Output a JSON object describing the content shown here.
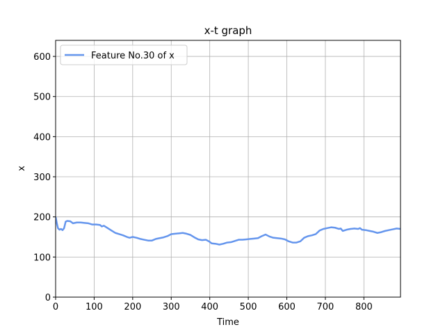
{
  "chart_data": {
    "type": "line",
    "title": "x-t graph",
    "xlabel": "Time",
    "ylabel": "x",
    "xlim": [
      0,
      895
    ],
    "ylim": [
      0,
      640
    ],
    "x_ticks": [
      0,
      100,
      200,
      300,
      400,
      500,
      600,
      700,
      800
    ],
    "y_ticks": [
      0,
      100,
      200,
      300,
      400,
      500,
      600
    ],
    "grid": true,
    "legend_position": "top-left",
    "series": [
      {
        "name": "Feature No.30 of x",
        "color": "#6495ED",
        "points": [
          [
            0,
            200
          ],
          [
            3,
            185
          ],
          [
            6,
            172
          ],
          [
            10,
            168
          ],
          [
            14,
            170
          ],
          [
            18,
            167
          ],
          [
            22,
            172
          ],
          [
            26,
            188
          ],
          [
            30,
            190
          ],
          [
            38,
            189
          ],
          [
            45,
            184
          ],
          [
            55,
            186
          ],
          [
            65,
            186
          ],
          [
            75,
            185
          ],
          [
            85,
            184
          ],
          [
            95,
            181
          ],
          [
            105,
            181
          ],
          [
            115,
            180
          ],
          [
            120,
            176
          ],
          [
            125,
            178
          ],
          [
            135,
            172
          ],
          [
            145,
            166
          ],
          [
            155,
            160
          ],
          [
            165,
            157
          ],
          [
            175,
            154
          ],
          [
            185,
            150
          ],
          [
            192,
            148
          ],
          [
            200,
            150
          ],
          [
            210,
            148
          ],
          [
            220,
            145
          ],
          [
            230,
            143
          ],
          [
            240,
            141
          ],
          [
            250,
            141
          ],
          [
            260,
            145
          ],
          [
            270,
            147
          ],
          [
            280,
            149
          ],
          [
            290,
            152
          ],
          [
            300,
            157
          ],
          [
            310,
            158
          ],
          [
            320,
            159
          ],
          [
            330,
            160
          ],
          [
            340,
            158
          ],
          [
            350,
            155
          ],
          [
            360,
            149
          ],
          [
            370,
            144
          ],
          [
            380,
            142
          ],
          [
            390,
            143
          ],
          [
            398,
            139
          ],
          [
            405,
            134
          ],
          [
            415,
            133
          ],
          [
            425,
            131
          ],
          [
            435,
            133
          ],
          [
            445,
            136
          ],
          [
            455,
            137
          ],
          [
            465,
            140
          ],
          [
            475,
            143
          ],
          [
            485,
            143
          ],
          [
            495,
            144
          ],
          [
            505,
            145
          ],
          [
            515,
            146
          ],
          [
            525,
            147
          ],
          [
            535,
            152
          ],
          [
            545,
            156
          ],
          [
            555,
            151
          ],
          [
            565,
            148
          ],
          [
            575,
            147
          ],
          [
            585,
            146
          ],
          [
            595,
            144
          ],
          [
            605,
            139
          ],
          [
            615,
            136
          ],
          [
            625,
            136
          ],
          [
            635,
            139
          ],
          [
            645,
            148
          ],
          [
            655,
            152
          ],
          [
            665,
            154
          ],
          [
            675,
            157
          ],
          [
            685,
            166
          ],
          [
            695,
            170
          ],
          [
            705,
            172
          ],
          [
            715,
            174
          ],
          [
            725,
            173
          ],
          [
            735,
            170
          ],
          [
            740,
            171
          ],
          [
            745,
            165
          ],
          [
            755,
            168
          ],
          [
            765,
            170
          ],
          [
            775,
            171
          ],
          [
            785,
            170
          ],
          [
            790,
            172
          ],
          [
            795,
            168
          ],
          [
            805,
            167
          ],
          [
            815,
            165
          ],
          [
            825,
            163
          ],
          [
            835,
            160
          ],
          [
            845,
            162
          ],
          [
            855,
            165
          ],
          [
            865,
            167
          ],
          [
            875,
            169
          ],
          [
            885,
            171
          ],
          [
            895,
            170
          ]
        ]
      }
    ]
  }
}
